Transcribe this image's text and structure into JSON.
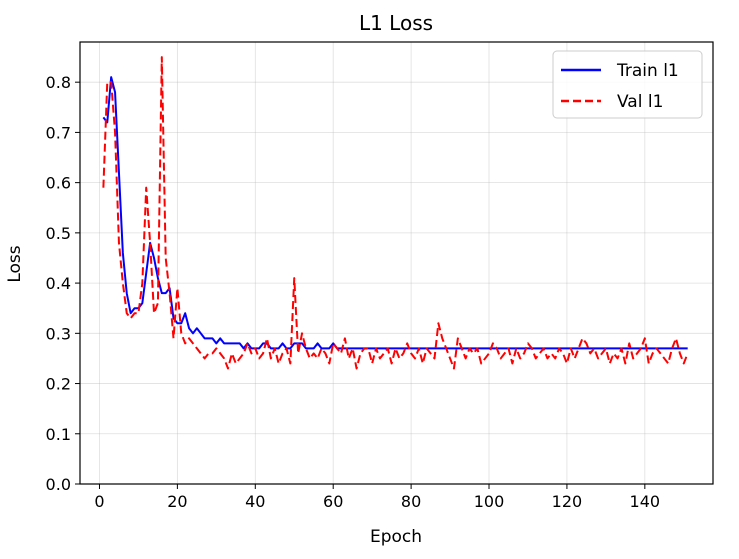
{
  "chart_data": {
    "type": "line",
    "title": "L1 Loss",
    "xlabel": "Epoch",
    "ylabel": "Loss",
    "xlim": [
      -5,
      157.5
    ],
    "ylim": [
      0.0,
      0.88
    ],
    "xticks": [
      0,
      20,
      40,
      60,
      80,
      100,
      120,
      140
    ],
    "yticks": [
      0.0,
      0.1,
      0.2,
      0.3,
      0.4,
      0.5,
      0.6,
      0.7,
      0.8
    ],
    "ytick_labels": [
      "0.0",
      "0.1",
      "0.2",
      "0.3",
      "0.4",
      "0.5",
      "0.6",
      "0.7",
      "0.8"
    ],
    "grid": true,
    "legend_position": "upper-right",
    "x": [
      1,
      2,
      3,
      4,
      5,
      6,
      7,
      8,
      9,
      10,
      11,
      12,
      13,
      14,
      15,
      16,
      17,
      18,
      19,
      20,
      21,
      22,
      23,
      24,
      25,
      26,
      27,
      28,
      29,
      30,
      31,
      32,
      33,
      34,
      35,
      36,
      37,
      38,
      39,
      40,
      41,
      42,
      43,
      44,
      45,
      46,
      47,
      48,
      49,
      50,
      51,
      52,
      53,
      54,
      55,
      56,
      57,
      58,
      59,
      60,
      61,
      62,
      63,
      64,
      65,
      66,
      67,
      68,
      69,
      70,
      71,
      72,
      73,
      74,
      75,
      76,
      77,
      78,
      79,
      80,
      81,
      82,
      83,
      84,
      85,
      86,
      87,
      88,
      89,
      90,
      91,
      92,
      93,
      94,
      95,
      96,
      97,
      98,
      99,
      100,
      101,
      102,
      103,
      104,
      105,
      106,
      107,
      108,
      109,
      110,
      111,
      112,
      113,
      114,
      115,
      116,
      117,
      118,
      119,
      120,
      121,
      122,
      123,
      124,
      125,
      126,
      127,
      128,
      129,
      130,
      131,
      132,
      133,
      134,
      135,
      136,
      137,
      138,
      139,
      140,
      141,
      142,
      143,
      144,
      145,
      146,
      147,
      148,
      149,
      150,
      151
    ],
    "series": [
      {
        "name": "Train l1",
        "color": "#0000ff",
        "style": "solid",
        "values": [
          0.73,
          0.72,
          0.81,
          0.78,
          0.62,
          0.46,
          0.38,
          0.34,
          0.35,
          0.35,
          0.36,
          0.42,
          0.48,
          0.45,
          0.41,
          0.38,
          0.38,
          0.39,
          0.33,
          0.32,
          0.32,
          0.34,
          0.31,
          0.3,
          0.31,
          0.3,
          0.29,
          0.29,
          0.29,
          0.28,
          0.29,
          0.28,
          0.28,
          0.28,
          0.28,
          0.28,
          0.27,
          0.28,
          0.27,
          0.27,
          0.27,
          0.28,
          0.28,
          0.27,
          0.27,
          0.27,
          0.28,
          0.27,
          0.27,
          0.28,
          0.28,
          0.28,
          0.27,
          0.27,
          0.27,
          0.28,
          0.27,
          0.27,
          0.27,
          0.28,
          0.27,
          0.27,
          0.27,
          0.27,
          0.27,
          0.27,
          0.27,
          0.27,
          0.27,
          0.27,
          0.27,
          0.27,
          0.27,
          0.27,
          0.27,
          0.27,
          0.27,
          0.27,
          0.27,
          0.27,
          0.27,
          0.27,
          0.27,
          0.27,
          0.27,
          0.27,
          0.27,
          0.27,
          0.27,
          0.27,
          0.27,
          0.27,
          0.27,
          0.27,
          0.27,
          0.27,
          0.27,
          0.27,
          0.27,
          0.27,
          0.27,
          0.27,
          0.27,
          0.27,
          0.27,
          0.27,
          0.27,
          0.27,
          0.27,
          0.27,
          0.27,
          0.27,
          0.27,
          0.27,
          0.27,
          0.27,
          0.27,
          0.27,
          0.27,
          0.27,
          0.27,
          0.27,
          0.27,
          0.27,
          0.27,
          0.27,
          0.27,
          0.27,
          0.27,
          0.27,
          0.27,
          0.27,
          0.27,
          0.27,
          0.27,
          0.27,
          0.27,
          0.27,
          0.27,
          0.27,
          0.27,
          0.27,
          0.27,
          0.27,
          0.27,
          0.27,
          0.27,
          0.27,
          0.27,
          0.27,
          0.27
        ]
      },
      {
        "name": "Val l1",
        "color": "#ff0000",
        "style": "dashed",
        "values": [
          0.59,
          0.8,
          0.8,
          0.7,
          0.48,
          0.4,
          0.34,
          0.33,
          0.34,
          0.34,
          0.4,
          0.59,
          0.48,
          0.34,
          0.36,
          0.85,
          0.45,
          0.38,
          0.29,
          0.39,
          0.3,
          0.28,
          0.29,
          0.28,
          0.27,
          0.26,
          0.25,
          0.26,
          0.26,
          0.27,
          0.26,
          0.25,
          0.23,
          0.26,
          0.24,
          0.25,
          0.26,
          0.28,
          0.26,
          0.27,
          0.25,
          0.26,
          0.29,
          0.25,
          0.27,
          0.24,
          0.26,
          0.27,
          0.24,
          0.41,
          0.26,
          0.3,
          0.27,
          0.25,
          0.26,
          0.25,
          0.27,
          0.26,
          0.24,
          0.28,
          0.27,
          0.26,
          0.29,
          0.25,
          0.27,
          0.23,
          0.26,
          0.27,
          0.27,
          0.24,
          0.27,
          0.25,
          0.26,
          0.27,
          0.24,
          0.27,
          0.25,
          0.26,
          0.28,
          0.26,
          0.25,
          0.27,
          0.24,
          0.27,
          0.26,
          0.25,
          0.32,
          0.29,
          0.27,
          0.25,
          0.23,
          0.29,
          0.27,
          0.25,
          0.27,
          0.26,
          0.27,
          0.24,
          0.25,
          0.26,
          0.28,
          0.27,
          0.25,
          0.26,
          0.27,
          0.24,
          0.27,
          0.25,
          0.26,
          0.28,
          0.27,
          0.25,
          0.26,
          0.27,
          0.25,
          0.26,
          0.25,
          0.27,
          0.26,
          0.24,
          0.27,
          0.25,
          0.27,
          0.29,
          0.28,
          0.26,
          0.27,
          0.25,
          0.26,
          0.27,
          0.24,
          0.26,
          0.25,
          0.27,
          0.24,
          0.28,
          0.25,
          0.26,
          0.27,
          0.29,
          0.24,
          0.26,
          0.27,
          0.26,
          0.25,
          0.24,
          0.27,
          0.29,
          0.26,
          0.24,
          0.26
        ]
      }
    ]
  }
}
